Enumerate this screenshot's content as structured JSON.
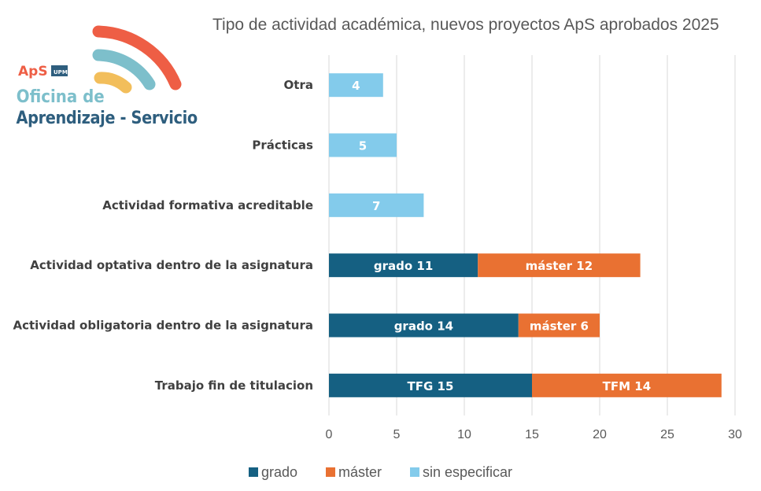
{
  "logo": {
    "aps": "ApS",
    "upm": "UPM",
    "line1": "Oficina de",
    "line2": "Aprendizaje - Servicio"
  },
  "chart_data": {
    "type": "bar",
    "orientation": "horizontal",
    "stacked": true,
    "title": "Tipo de actividad académica, nuevos proyectos ApS aprobados 2025",
    "categories": [
      "Otra",
      "Prácticas",
      "Actividad formativa acreditable",
      "Actividad optativa dentro de la asignatura",
      "Actividad obligatoria dentro de la  asignatura",
      "Trabajo fin de titulacion"
    ],
    "series": [
      {
        "name": "grado",
        "color": "#156082",
        "values": [
          null,
          null,
          null,
          11,
          14,
          15
        ],
        "labels": [
          "",
          "",
          "",
          "grado 11",
          "grado 14",
          "TFG 15"
        ]
      },
      {
        "name": "máster",
        "color": "#E97132",
        "values": [
          null,
          null,
          null,
          12,
          6,
          14
        ],
        "labels": [
          "",
          "",
          "",
          "máster 12",
          "máster 6",
          "TFM 14"
        ]
      },
      {
        "name": "sin especificar",
        "color": "#83CBEB",
        "values": [
          4,
          5,
          7,
          null,
          null,
          null
        ],
        "labels": [
          "4",
          "5",
          "7",
          "",
          "",
          ""
        ]
      }
    ],
    "xlim": [
      0,
      30
    ],
    "xticks": [
      "0",
      "5",
      "10",
      "15",
      "20",
      "25",
      "30"
    ],
    "grid": true,
    "legend": "bottom"
  }
}
